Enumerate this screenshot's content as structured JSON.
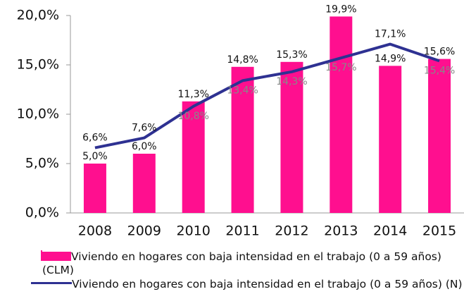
{
  "chart_data": {
    "type": "bar",
    "categories": [
      "2008",
      "2009",
      "2010",
      "2011",
      "2012",
      "2013",
      "2014",
      "2015"
    ],
    "series": [
      {
        "name": "Viviendo en hogares con baja intensidad en el trabajo (0 a 59 años) (CLM)",
        "type": "bar",
        "color": "#ff0f8f",
        "values": [
          5.0,
          6.0,
          11.3,
          14.8,
          15.3,
          19.9,
          14.9,
          15.6
        ],
        "value_labels": [
          "5,0%",
          "6,0%",
          "11,3%",
          "14,8%",
          "15,3%",
          "19,9%",
          "14,9%",
          "15,6%"
        ]
      },
      {
        "name": "Viviendo en hogares con baja intensidad en el trabajo (0 a 59 años) (N)",
        "type": "line",
        "color": "#2e3192",
        "values": [
          6.6,
          7.6,
          10.8,
          13.4,
          14.3,
          15.7,
          17.1,
          15.4
        ],
        "value_labels": [
          "6,6%",
          "7,6%",
          "10,8%",
          "13,4%",
          "14,3%",
          "15,7%",
          "17,1%",
          "15,4%"
        ]
      }
    ],
    "ylim": [
      0,
      20
    ],
    "yticks": [
      {
        "value": 0,
        "label": "0,0%"
      },
      {
        "value": 5,
        "label": "5,0%"
      },
      {
        "value": 10,
        "label": "10,0%"
      },
      {
        "value": 15,
        "label": "15,0%"
      },
      {
        "value": 20,
        "label": "20,0%"
      }
    ]
  }
}
